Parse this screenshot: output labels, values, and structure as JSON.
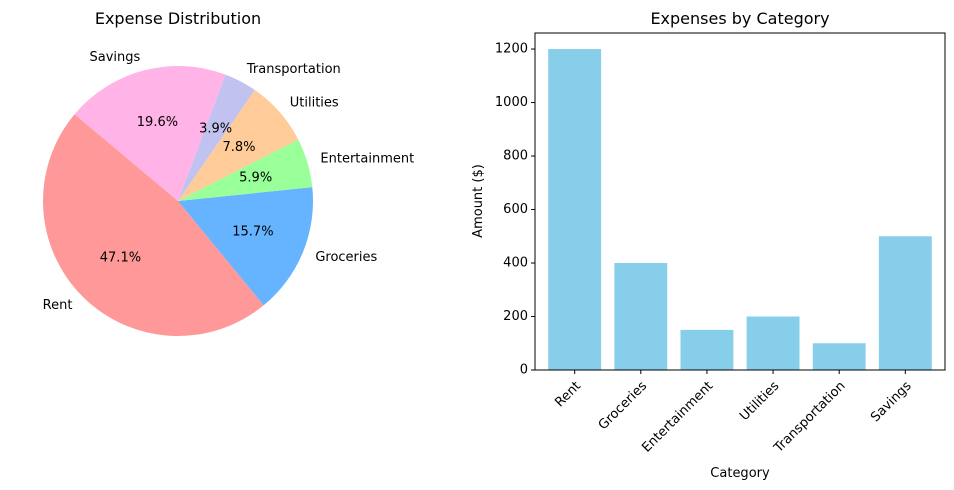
{
  "chart_data": [
    {
      "type": "pie",
      "title": "Expense Distribution",
      "categories": [
        "Rent",
        "Groceries",
        "Entertainment",
        "Utilities",
        "Transportation",
        "Savings"
      ],
      "values": [
        1200,
        400,
        150,
        200,
        100,
        500
      ],
      "percent_labels": [
        "47.1%",
        "15.7%",
        "5.9%",
        "7.8%",
        "3.9%",
        "19.6%"
      ],
      "colors": [
        "#ff9999",
        "#66b3ff",
        "#99ff99",
        "#ffcc99",
        "#c2c2f0",
        "#ffb3e6"
      ],
      "start_angle_deg": 140
    },
    {
      "type": "bar",
      "title": "Expenses by Category",
      "xlabel": "Category",
      "ylabel": "Amount ($)",
      "categories": [
        "Rent",
        "Groceries",
        "Entertainment",
        "Utilities",
        "Transportation",
        "Savings"
      ],
      "values": [
        1200,
        400,
        150,
        200,
        100,
        500
      ],
      "color": "#87ceeb",
      "ylim": [
        0,
        1260
      ],
      "yticks": [
        0,
        200,
        400,
        600,
        800,
        1000,
        1200
      ],
      "grid": false
    }
  ]
}
